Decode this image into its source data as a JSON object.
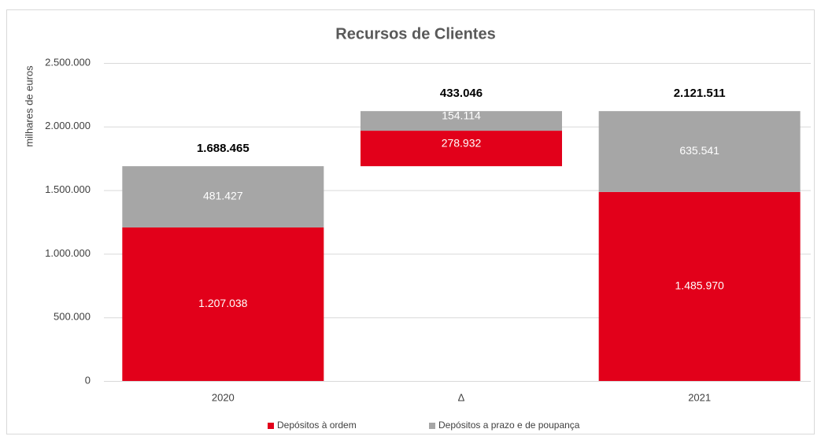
{
  "chart_data": {
    "type": "waterfall",
    "title": "Recursos de Clientes",
    "y_label": "milhares de euros",
    "categories": [
      "2020",
      "Δ",
      "2021"
    ],
    "series": [
      {
        "name": "Depósitos à ordem",
        "color": "#e2001a",
        "values": [
          1207038,
          278932,
          1485970
        ],
        "value_labels": [
          "1.207.038",
          "278.932",
          "1.485.970"
        ]
      },
      {
        "name": "Depósitos a prazo e de poupança",
        "color": "#a6a6a6",
        "values": [
          481427,
          154114,
          635541
        ],
        "value_labels": [
          "481.427",
          "154.114",
          "635.541"
        ]
      }
    ],
    "totals": {
      "values": [
        1688465,
        433046,
        2121511
      ],
      "value_labels": [
        "1.688.465",
        "433.046",
        "2.121.511"
      ]
    },
    "ylim": [
      0,
      2500000
    ],
    "yticks": [
      0,
      {
        "value": 500000,
        "label": "500.000"
      },
      {
        "value": 1000000,
        "label": "1.000.000"
      },
      {
        "value": 1500000,
        "label": "1.500.000"
      },
      {
        "value": 2000000,
        "label": "2.000.000"
      },
      {
        "value": 2500000,
        "label": "2.500.000"
      }
    ],
    "grid": true,
    "legend": "bottom"
  }
}
